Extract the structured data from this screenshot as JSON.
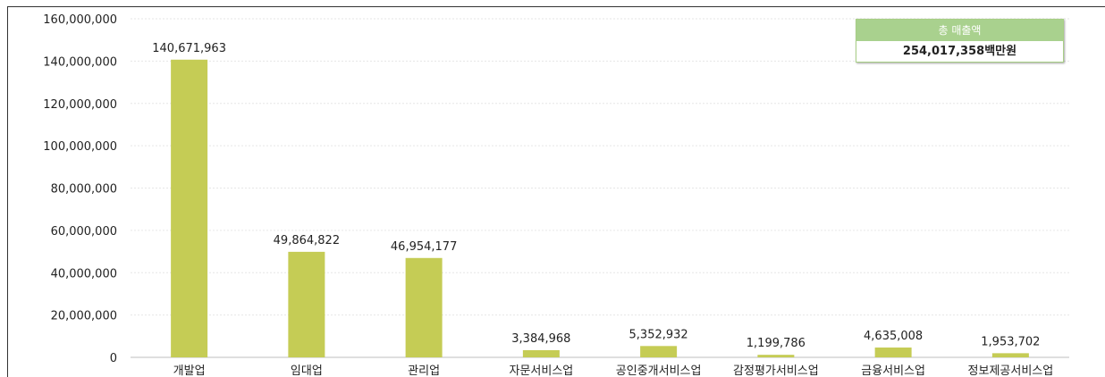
{
  "chart_data": {
    "type": "bar",
    "categories": [
      "개발업",
      "임대업",
      "관리업",
      "자문서비스업",
      "공인중개서비스업",
      "감정평가서비스업",
      "금융서비스업",
      "정보제공서비스업"
    ],
    "values": [
      140671963,
      49864822,
      46954177,
      3384968,
      5352932,
      1199786,
      4635008,
      1953702
    ],
    "value_labels": [
      "140,671,963",
      "49,864,822",
      "46,954,177",
      "3,384,968",
      "5,352,932",
      "1,199,786",
      "4,635,008",
      "1,953,702"
    ],
    "ylim": [
      0,
      160000000
    ],
    "yticks": [
      0,
      20000000,
      40000000,
      60000000,
      80000000,
      100000000,
      120000000,
      140000000,
      160000000
    ],
    "ytick_labels": [
      "0",
      "20,000,000",
      "40,000,000",
      "60,000,000",
      "80,000,000",
      "100,000,000",
      "120,000,000",
      "140,000,000",
      "160,000,000"
    ],
    "bar_color": "#c5cc55",
    "grid": true,
    "legend": "none"
  },
  "summary": {
    "title": "총 매출액",
    "value": "254,017,358백만원"
  }
}
